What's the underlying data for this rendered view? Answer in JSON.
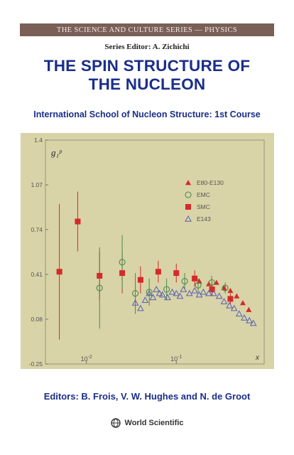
{
  "cover": {
    "series": "THE SCIENCE AND CULTURE SERIES — PHYSICS",
    "series_editor": "Series Editor: A. Zichichi",
    "title_line1": "THE SPIN STRUCTURE OF",
    "title_line2": "THE NUCLEON",
    "subtitle": "International School of Nucleon Structure: 1st Course",
    "editors": "Editors:  B. Frois, V. W. Hughes and N. de Groot",
    "publisher": "World Scientific",
    "colors": {
      "band": "#7a5f57",
      "title": "#1a2e8a",
      "plot_bg": "#d9d3a8",
      "red": "#d42a2a",
      "green": "#4a8a4a",
      "blue": "#5560b0"
    }
  },
  "chart_data": {
    "type": "scatter",
    "ylabel": "g₁ᵖ",
    "xlabel": "x",
    "ylim": [
      -0.25,
      1.4
    ],
    "y_ticks": [
      "1.4",
      "1.07",
      "0.74",
      "0.41",
      "0.08",
      "-0.25"
    ],
    "x_tick_base": "10",
    "x_ticks": [
      {
        "exp": "-2",
        "value": 0.01
      },
      {
        "exp": "-1",
        "value": 0.1
      }
    ],
    "x_log": true,
    "xlim": [
      0.0035,
      0.95
    ],
    "legend": [
      "E80-E130",
      "EMC",
      "SMC",
      "E143"
    ],
    "legend_position": "top-right",
    "series": [
      {
        "name": "E80-E130",
        "marker": "triangle-filled",
        "color": "#d42a2a",
        "points": [
          [
            0.18,
            0.36
          ],
          [
            0.23,
            0.34
          ],
          [
            0.28,
            0.35
          ],
          [
            0.34,
            0.31
          ],
          [
            0.4,
            0.29
          ],
          [
            0.47,
            0.25
          ],
          [
            0.55,
            0.2
          ],
          [
            0.64,
            0.15
          ]
        ]
      },
      {
        "name": "EMC",
        "marker": "circle-open",
        "color": "#4a8a4a",
        "points": [
          [
            0.014,
            0.31
          ],
          [
            0.025,
            0.5
          ],
          [
            0.035,
            0.27
          ],
          [
            0.05,
            0.28
          ],
          [
            0.078,
            0.3
          ],
          [
            0.124,
            0.36
          ],
          [
            0.175,
            0.33
          ],
          [
            0.248,
            0.35
          ],
          [
            0.35,
            0.31
          ]
        ]
      },
      {
        "name": "SMC",
        "marker": "square-filled",
        "color": "#d42a2a",
        "points": [
          [
            0.005,
            0.43
          ],
          [
            0.008,
            0.8
          ],
          [
            0.014,
            0.4
          ],
          [
            0.025,
            0.42
          ],
          [
            0.04,
            0.37
          ],
          [
            0.063,
            0.43
          ],
          [
            0.1,
            0.42
          ],
          [
            0.16,
            0.38
          ],
          [
            0.25,
            0.3
          ],
          [
            0.4,
            0.23
          ]
        ]
      },
      {
        "name": "E143",
        "marker": "triangle-open",
        "color": "#5560b0",
        "points": [
          [
            0.035,
            0.2
          ],
          [
            0.04,
            0.16
          ],
          [
            0.045,
            0.22
          ],
          [
            0.05,
            0.27
          ],
          [
            0.055,
            0.24
          ],
          [
            0.06,
            0.3
          ],
          [
            0.065,
            0.27
          ],
          [
            0.07,
            0.26
          ],
          [
            0.08,
            0.24
          ],
          [
            0.09,
            0.28
          ],
          [
            0.1,
            0.27
          ],
          [
            0.11,
            0.25
          ],
          [
            0.12,
            0.3
          ],
          [
            0.14,
            0.27
          ],
          [
            0.16,
            0.29
          ],
          [
            0.18,
            0.26
          ],
          [
            0.2,
            0.28
          ],
          [
            0.23,
            0.27
          ],
          [
            0.26,
            0.27
          ],
          [
            0.3,
            0.25
          ],
          [
            0.34,
            0.21
          ],
          [
            0.39,
            0.18
          ],
          [
            0.44,
            0.16
          ],
          [
            0.5,
            0.12
          ],
          [
            0.57,
            0.09
          ],
          [
            0.65,
            0.07
          ],
          [
            0.72,
            0.05
          ]
        ]
      }
    ],
    "errors": {
      "SMC": [
        0.5,
        0.22,
        0.18,
        0.15,
        0.1,
        0.08,
        0.07,
        0.06,
        0.05,
        0.04
      ],
      "EMC": [
        0.3,
        0.2,
        0.15,
        0.1,
        0.08,
        0.06,
        0.05,
        0.05,
        0.04
      ]
    }
  }
}
